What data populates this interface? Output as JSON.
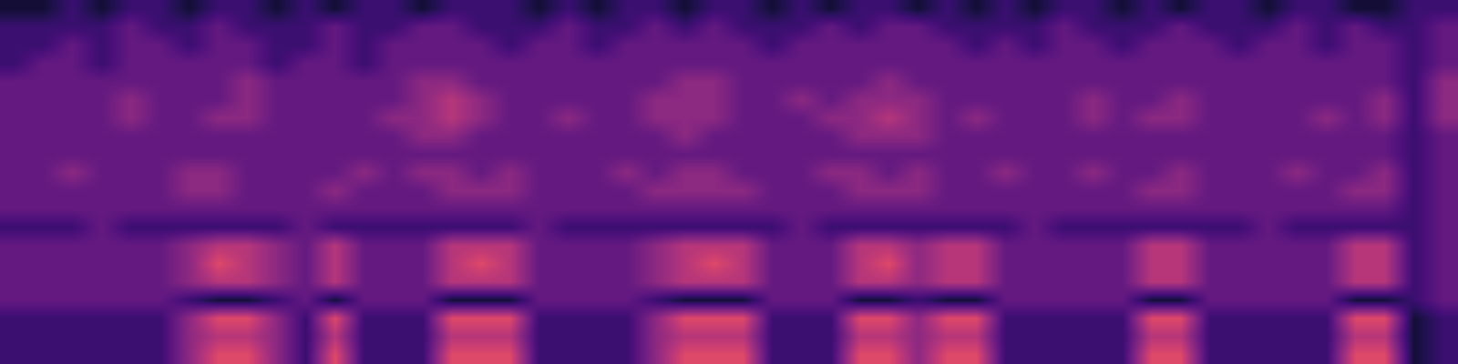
{
  "chart_data": {
    "type": "heatmap",
    "color": "magma",
    "tick_labels": false,
    "zlim": [
      0,
      10
    ],
    "cells": [
      [
        1,
        1,
        2,
        1,
        2,
        2,
        1,
        2,
        2,
        1,
        2,
        1,
        2,
        2,
        1,
        2,
        2,
        2,
        1,
        2,
        1,
        2,
        2,
        1,
        2,
        2,
        1,
        2,
        1,
        2,
        2,
        1,
        2,
        1,
        2,
        1,
        2,
        2,
        1,
        2,
        1,
        2,
        2,
        1,
        2,
        2,
        1,
        1,
        2,
        2
      ],
      [
        2,
        2,
        2,
        2,
        3,
        2,
        2,
        3,
        2,
        2,
        2,
        3,
        2,
        2,
        3,
        3,
        2,
        2,
        2,
        3,
        2,
        2,
        3,
        2,
        3,
        2,
        2,
        2,
        3,
        2,
        3,
        3,
        2,
        2,
        2,
        2,
        3,
        2,
        2,
        2,
        3,
        2,
        2,
        2,
        3,
        2,
        3,
        2,
        2,
        3
      ],
      [
        2,
        2,
        3,
        2,
        3,
        3,
        2,
        3,
        3,
        2,
        2,
        3,
        2,
        3,
        3,
        3,
        3,
        2,
        3,
        3,
        2,
        3,
        3,
        3,
        3,
        3,
        2,
        3,
        3,
        3,
        3,
        3,
        3,
        2,
        3,
        2,
        3,
        3,
        2,
        3,
        3,
        3,
        2,
        3,
        3,
        2,
        3,
        3,
        2,
        3
      ],
      [
        2,
        3,
        3,
        2,
        3,
        3,
        3,
        3,
        3,
        2,
        3,
        3,
        2,
        3,
        3,
        3,
        3,
        3,
        3,
        3,
        3,
        3,
        3,
        3,
        3,
        3,
        3,
        3,
        3,
        3,
        3,
        3,
        3,
        3,
        3,
        3,
        3,
        3,
        3,
        3,
        3,
        3,
        3,
        3,
        3,
        3,
        3,
        3,
        2,
        3
      ],
      [
        3,
        3,
        3,
        3,
        3,
        3,
        3,
        3,
        4,
        3,
        3,
        3,
        3,
        3,
        4,
        4,
        3,
        3,
        3,
        3,
        3,
        3,
        3,
        4,
        4,
        3,
        3,
        3,
        3,
        3,
        4,
        3,
        3,
        3,
        3,
        3,
        3,
        3,
        3,
        3,
        3,
        3,
        3,
        3,
        3,
        3,
        3,
        3,
        2,
        4
      ],
      [
        3,
        3,
        3,
        3,
        4,
        3,
        3,
        3,
        4,
        3,
        3,
        3,
        3,
        3,
        4,
        5,
        4,
        3,
        3,
        3,
        3,
        3,
        4,
        4,
        4,
        3,
        3,
        4,
        3,
        4,
        4,
        4,
        3,
        3,
        3,
        3,
        3,
        4,
        3,
        3,
        4,
        3,
        3,
        3,
        3,
        3,
        3,
        4,
        2,
        4
      ],
      [
        3,
        3,
        3,
        3,
        4,
        3,
        3,
        4,
        4,
        3,
        3,
        3,
        3,
        4,
        4,
        5,
        4,
        3,
        3,
        4,
        3,
        3,
        4,
        4,
        4,
        3,
        3,
        3,
        4,
        4,
        5,
        4,
        3,
        4,
        3,
        3,
        3,
        4,
        3,
        4,
        4,
        3,
        3,
        3,
        3,
        4,
        3,
        4,
        2,
        4
      ],
      [
        3,
        3,
        3,
        3,
        3,
        3,
        3,
        3,
        3,
        3,
        3,
        3,
        3,
        3,
        4,
        4,
        3,
        3,
        3,
        3,
        3,
        3,
        3,
        4,
        3,
        3,
        3,
        3,
        3,
        4,
        4,
        4,
        3,
        3,
        3,
        3,
        3,
        3,
        3,
        3,
        3,
        3,
        3,
        3,
        3,
        3,
        3,
        3,
        2,
        3
      ],
      [
        3,
        3,
        3,
        3,
        3,
        3,
        3,
        3,
        3,
        3,
        3,
        3,
        3,
        3,
        3,
        3,
        3,
        3,
        3,
        3,
        3,
        3,
        3,
        3,
        3,
        3,
        3,
        3,
        3,
        3,
        3,
        3,
        3,
        3,
        3,
        3,
        3,
        3,
        3,
        3,
        3,
        3,
        3,
        3,
        3,
        3,
        3,
        3,
        2,
        3
      ],
      [
        3,
        3,
        4,
        3,
        3,
        3,
        4,
        4,
        3,
        3,
        3,
        3,
        4,
        3,
        4,
        4,
        3,
        4,
        3,
        3,
        3,
        4,
        3,
        4,
        4,
        3,
        3,
        3,
        4,
        4,
        3,
        4,
        3,
        3,
        4,
        3,
        3,
        4,
        3,
        3,
        4,
        3,
        3,
        3,
        4,
        3,
        3,
        4,
        2,
        3
      ],
      [
        3,
        3,
        3,
        3,
        3,
        3,
        4,
        4,
        3,
        3,
        3,
        4,
        3,
        3,
        3,
        4,
        4,
        4,
        3,
        3,
        3,
        3,
        4,
        4,
        4,
        4,
        3,
        3,
        3,
        4,
        4,
        4,
        3,
        3,
        3,
        3,
        3,
        3,
        3,
        4,
        4,
        3,
        3,
        3,
        3,
        3,
        4,
        4,
        2,
        3
      ],
      [
        3,
        3,
        3,
        3,
        3,
        3,
        3,
        3,
        3,
        3,
        3,
        3,
        3,
        3,
        3,
        3,
        3,
        3,
        3,
        3,
        3,
        3,
        3,
        3,
        3,
        3,
        3,
        3,
        3,
        3,
        3,
        3,
        3,
        3,
        3,
        3,
        3,
        3,
        3,
        3,
        3,
        3,
        3,
        3,
        3,
        3,
        3,
        3,
        2,
        3
      ],
      [
        2,
        2,
        2,
        3,
        2,
        2,
        2,
        2,
        2,
        2,
        3,
        2,
        2,
        2,
        2,
        2,
        2,
        2,
        3,
        2,
        2,
        2,
        2,
        2,
        2,
        2,
        2,
        3,
        2,
        2,
        2,
        2,
        2,
        2,
        2,
        3,
        2,
        2,
        2,
        2,
        2,
        2,
        2,
        3,
        2,
        2,
        2,
        2,
        2,
        3
      ],
      [
        3,
        3,
        3,
        3,
        3,
        3,
        4,
        5,
        5,
        4,
        3,
        5,
        3,
        3,
        3,
        5,
        5,
        5,
        3,
        3,
        3,
        3,
        4,
        5,
        5,
        5,
        3,
        3,
        3,
        5,
        5,
        4,
        5,
        5,
        3,
        3,
        3,
        3,
        3,
        5,
        5,
        3,
        3,
        3,
        3,
        3,
        5,
        5,
        2,
        3
      ],
      [
        3,
        3,
        3,
        3,
        3,
        3,
        4,
        6,
        5,
        4,
        3,
        5,
        3,
        3,
        3,
        5,
        6,
        5,
        3,
        3,
        3,
        3,
        4,
        5,
        6,
        5,
        3,
        3,
        3,
        5,
        6,
        4,
        5,
        5,
        3,
        3,
        3,
        3,
        3,
        5,
        5,
        3,
        3,
        3,
        3,
        3,
        5,
        5,
        2,
        3
      ],
      [
        3,
        3,
        3,
        3,
        3,
        3,
        4,
        5,
        5,
        4,
        3,
        5,
        3,
        3,
        3,
        5,
        5,
        5,
        3,
        3,
        3,
        3,
        4,
        5,
        5,
        5,
        3,
        3,
        3,
        5,
        5,
        4,
        5,
        5,
        3,
        3,
        3,
        3,
        3,
        5,
        5,
        3,
        3,
        3,
        3,
        3,
        5,
        5,
        2,
        3
      ],
      [
        3,
        3,
        3,
        3,
        3,
        3,
        2,
        1,
        1,
        2,
        3,
        1,
        3,
        3,
        3,
        1,
        1,
        1,
        3,
        3,
        3,
        3,
        2,
        1,
        1,
        1,
        3,
        3,
        3,
        1,
        1,
        2,
        1,
        1,
        3,
        3,
        3,
        3,
        3,
        1,
        1,
        3,
        3,
        3,
        3,
        3,
        1,
        1,
        2,
        3
      ],
      [
        2,
        2,
        2,
        2,
        2,
        2,
        4,
        6,
        6,
        4,
        2,
        6,
        2,
        2,
        2,
        6,
        6,
        6,
        2,
        2,
        2,
        2,
        4,
        6,
        6,
        6,
        2,
        2,
        2,
        6,
        6,
        4,
        6,
        6,
        2,
        2,
        2,
        2,
        2,
        6,
        6,
        2,
        2,
        2,
        2,
        2,
        6,
        6,
        1,
        2
      ],
      [
        2,
        2,
        2,
        2,
        2,
        2,
        4,
        5,
        5,
        4,
        2,
        5,
        2,
        2,
        2,
        5,
        5,
        5,
        2,
        2,
        2,
        2,
        4,
        5,
        5,
        5,
        2,
        2,
        2,
        5,
        5,
        4,
        5,
        5,
        2,
        2,
        2,
        2,
        2,
        5,
        5,
        2,
        2,
        2,
        2,
        2,
        5,
        5,
        1,
        2
      ],
      [
        2,
        2,
        2,
        2,
        2,
        2,
        4,
        6,
        6,
        4,
        2,
        6,
        2,
        2,
        2,
        6,
        6,
        6,
        2,
        2,
        2,
        2,
        4,
        6,
        6,
        6,
        2,
        2,
        2,
        6,
        6,
        4,
        6,
        6,
        2,
        2,
        2,
        2,
        2,
        6,
        6,
        2,
        2,
        2,
        2,
        2,
        6,
        6,
        1,
        2
      ]
    ]
  }
}
